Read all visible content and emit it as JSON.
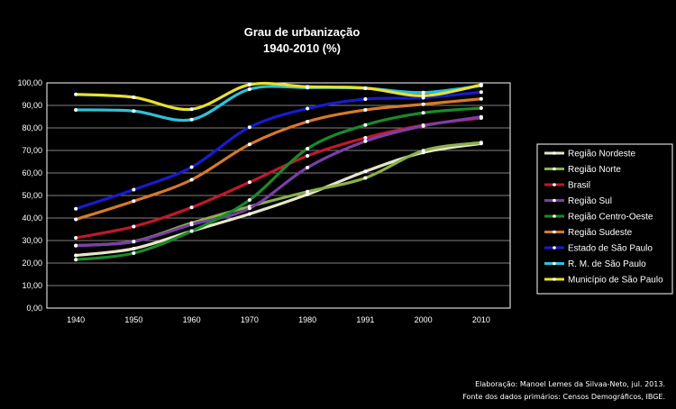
{
  "chart_data": {
    "type": "line",
    "title": "Grau de urbanização",
    "subtitle": "1940-2010 (%)",
    "xlabel": "",
    "ylabel": "",
    "ylim": [
      0,
      100
    ],
    "y_ticks": [
      "0,00",
      "10,00",
      "20,00",
      "30,00",
      "40,00",
      "50,00",
      "60,00",
      "70,00",
      "80,00",
      "90,00",
      "100,00"
    ],
    "categories": [
      "1940",
      "1950",
      "1960",
      "1970",
      "1980",
      "1991",
      "2000",
      "2010"
    ],
    "grid": true,
    "legend_position": "right",
    "series": [
      {
        "name": "Região Nordeste",
        "color": "#e6e6c8",
        "values": [
          23.4,
          26.4,
          34.2,
          41.8,
          50.5,
          60.7,
          69.1,
          73.1
        ]
      },
      {
        "name": "Região Norte",
        "color": "#8ab050",
        "values": [
          27.8,
          29.6,
          37.8,
          45.1,
          51.7,
          57.8,
          69.9,
          73.5
        ]
      },
      {
        "name": "Brasil",
        "color": "#c0182c",
        "values": [
          31.2,
          36.2,
          44.7,
          55.9,
          67.6,
          75.6,
          81.2,
          84.4
        ]
      },
      {
        "name": "Região Sul",
        "color": "#7a3ea6",
        "values": [
          27.7,
          29.5,
          37.1,
          44.3,
          62.4,
          74.1,
          80.9,
          84.9
        ]
      },
      {
        "name": "Região Centro-Oeste",
        "color": "#1a8a2a",
        "values": [
          21.5,
          24.4,
          34.2,
          48.0,
          70.8,
          81.3,
          86.7,
          88.8
        ]
      },
      {
        "name": "Região Sudeste",
        "color": "#d8782c",
        "values": [
          39.4,
          47.5,
          57.0,
          72.7,
          82.8,
          88.0,
          90.5,
          92.9
        ]
      },
      {
        "name": "Estado de São Paulo",
        "color": "#1a1ad0",
        "values": [
          44.1,
          52.6,
          62.6,
          80.3,
          88.6,
          92.8,
          93.4,
          95.9
        ]
      },
      {
        "name": "R. M. de São Paulo",
        "color": "#30c0d8",
        "values": [
          88.0,
          87.5,
          83.7,
          97.2,
          97.9,
          97.6,
          95.7,
          98.8
        ]
      },
      {
        "name": "Município de São Paulo",
        "color": "#e8e030",
        "values": [
          94.9,
          93.6,
          88.3,
          99.2,
          98.3,
          97.7,
          94.3,
          99.1
        ]
      }
    ]
  },
  "credits": {
    "line1": "Elaboração: Manoel Lemes da Silvaa-Neto, jul. 2013.",
    "line2": "Fonte dos dados primários: Censos Demográficos, IBGE."
  }
}
